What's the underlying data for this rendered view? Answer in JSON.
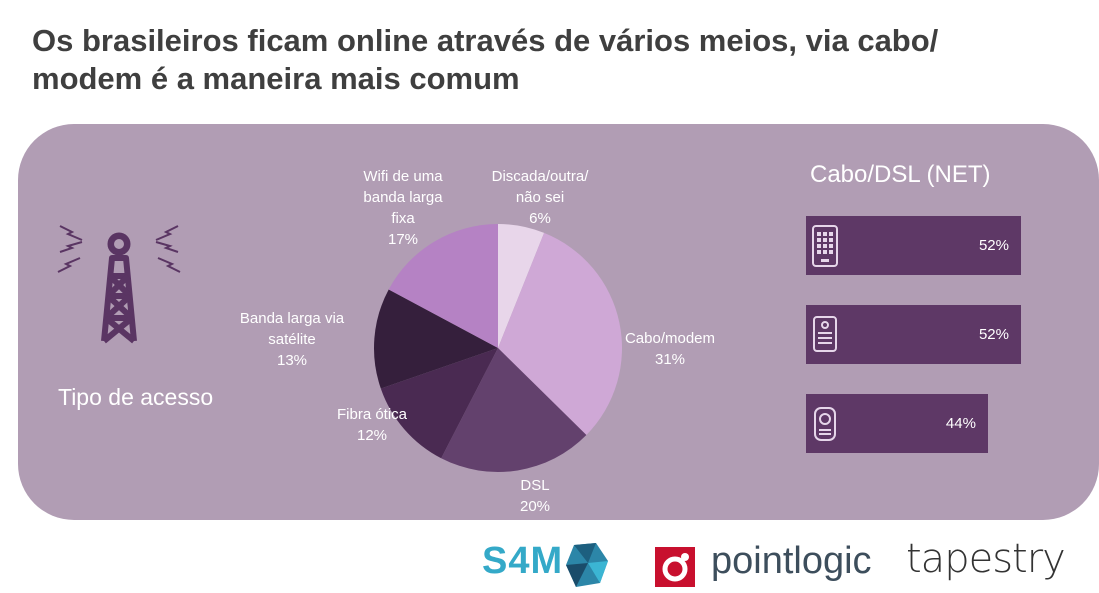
{
  "title": "Os brasileiros ficam online através de vários meios, via cabo/ modem é a maneira mais comum",
  "left_label": "Tipo de acesso",
  "chart_data": {
    "type": "pie",
    "title": "",
    "slices": [
      {
        "label": "Discada/outra/\nnão sei",
        "value": 6,
        "value_label": "6%",
        "color": "#e8d6ea"
      },
      {
        "label": "Cabo/modem",
        "value": 31,
        "value_label": "31%",
        "color": "#cfa8d6"
      },
      {
        "label": "DSL",
        "value": 20,
        "value_label": "20%",
        "color": "#63416d"
      },
      {
        "label": "Fibra ótica",
        "value": 12,
        "value_label": "12%",
        "color": "#4a2a52"
      },
      {
        "label": "Banda larga via\nsatélite",
        "value": 13,
        "value_label": "13%",
        "color": "#351f3c"
      },
      {
        "label": "Wifi de uma\nbanda larga\nfixa",
        "value": 17,
        "value_label": "17%",
        "color": "#b582c4"
      }
    ]
  },
  "right_panel": {
    "title": "Cabo/DSL (NET)",
    "bars": [
      {
        "icon": "tablet-icon",
        "value": 52,
        "value_label": "52%"
      },
      {
        "icon": "ereader-icon",
        "value": 52,
        "value_label": "52%"
      },
      {
        "icon": "router-icon",
        "value": 44,
        "value_label": "44%"
      }
    ]
  },
  "logos": {
    "s4m": "S4M",
    "pointlogic": "pointlogic",
    "tapestry": "tapestry"
  },
  "colors": {
    "panel": "#b19db4",
    "bar": "#5e3866",
    "title": "#3f3f3f",
    "s4m": "#34a9c8",
    "pointlogic_red": "#c8102e"
  }
}
